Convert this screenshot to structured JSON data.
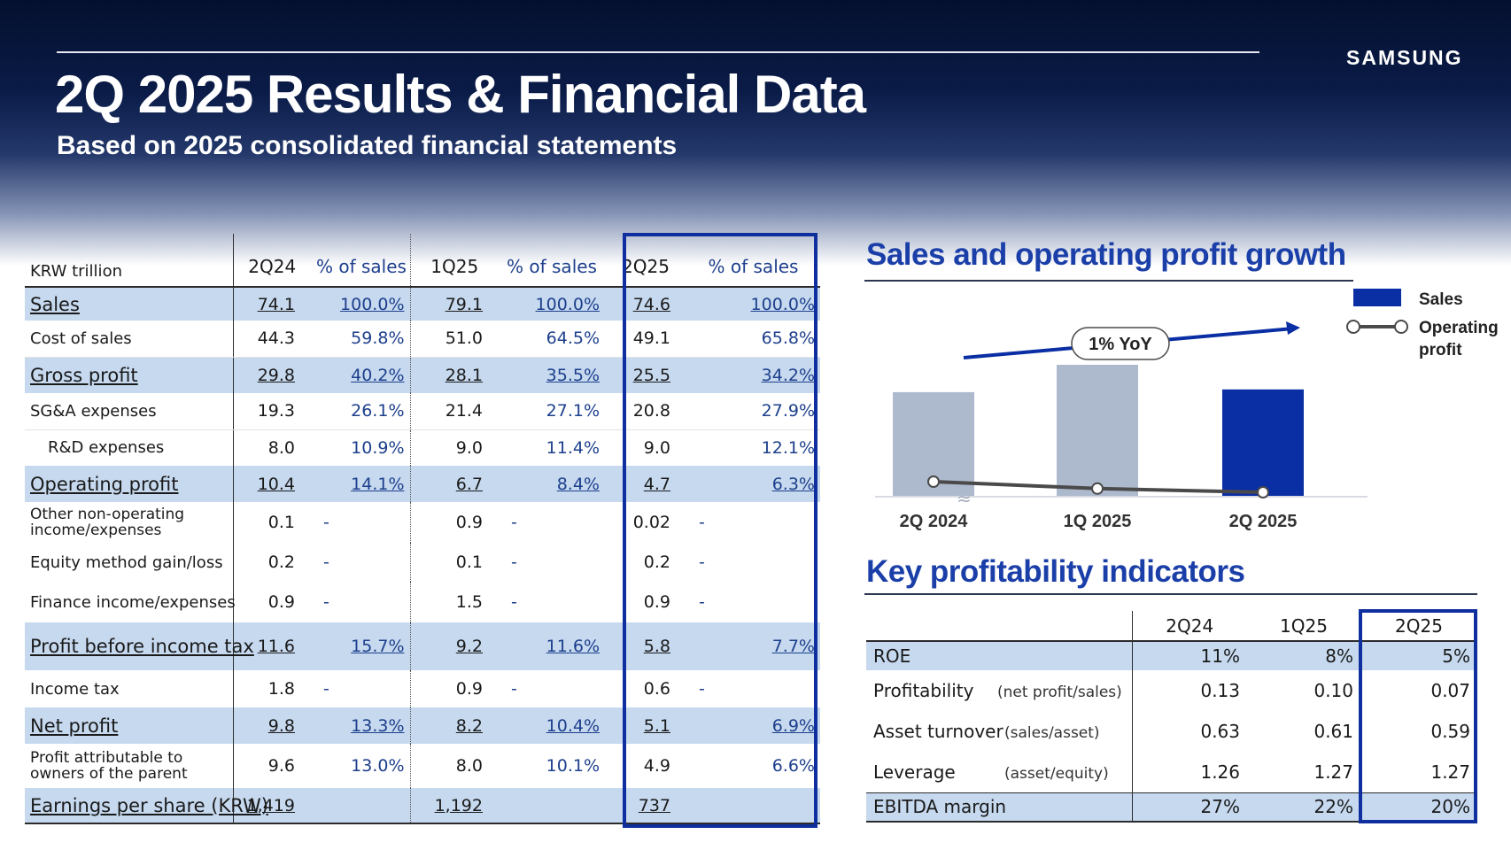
{
  "header": {
    "brand": "SAMSUNG",
    "title": "2Q 2025 Results & Financial Data",
    "subtitle": "Based on 2025 consolidated financial statements"
  },
  "table": {
    "unit": "KRW trillion",
    "columns": [
      "2Q24",
      "% of sales",
      "1Q25",
      "% of sales",
      "2Q25",
      "% of sales"
    ],
    "rows": [
      {
        "label": "Sales",
        "v1": "74.1",
        "p1": "100.0%",
        "v2": "79.1",
        "p2": "100.0%",
        "v3": "74.6",
        "p3": "100.0%"
      },
      {
        "label": "Cost of sales",
        "v1": "44.3",
        "p1": "59.8%",
        "v2": "51.0",
        "p2": "64.5%",
        "v3": "49.1",
        "p3": "65.8%"
      },
      {
        "label": "Gross profit",
        "v1": "29.8",
        "p1": "40.2%",
        "v2": "28.1",
        "p2": "35.5%",
        "v3": "25.5",
        "p3": "34.2%"
      },
      {
        "label": "SG&A expenses",
        "v1": "19.3",
        "p1": "26.1%",
        "v2": "21.4",
        "p2": "27.1%",
        "v3": "20.8",
        "p3": "27.9%"
      },
      {
        "label": "R&D expenses",
        "v1": "8.0",
        "p1": "10.9%",
        "v2": "9.0",
        "p2": "11.4%",
        "v3": "9.0",
        "p3": "12.1%"
      },
      {
        "label": "Operating profit",
        "v1": "10.4",
        "p1": "14.1%",
        "v2": "6.7",
        "p2": "8.4%",
        "v3": "4.7",
        "p3": "6.3%"
      },
      {
        "label": "Other non-operating income/expenses",
        "v1": "0.1",
        "p1": "-",
        "v2": "0.9",
        "p2": "-",
        "v3": "0.02",
        "p3": "-"
      },
      {
        "label": "Equity method gain/loss",
        "v1": "0.2",
        "p1": "-",
        "v2": "0.1",
        "p2": "-",
        "v3": "0.2",
        "p3": "-"
      },
      {
        "label": "Finance income/expenses",
        "v1": "0.9",
        "p1": "-",
        "v2": "1.5",
        "p2": "-",
        "v3": "0.9",
        "p3": "-"
      },
      {
        "label": "Profit before income tax",
        "v1": "11.6",
        "p1": "15.7%",
        "v2": "9.2",
        "p2": "11.6%",
        "v3": "5.8",
        "p3": "7.7%"
      },
      {
        "label": "Income tax",
        "v1": "1.8",
        "p1": "-",
        "v2": "0.9",
        "p2": "-",
        "v3": "0.6",
        "p3": "-"
      },
      {
        "label": "Net profit",
        "v1": "9.8",
        "p1": "13.3%",
        "v2": "8.2",
        "p2": "10.4%",
        "v3": "5.1",
        "p3": "6.9%"
      },
      {
        "label": "Profit attributable to owners of the parent",
        "v1": "9.6",
        "p1": "13.0%",
        "v2": "8.0",
        "p2": "10.1%",
        "v3": "4.9",
        "p3": "6.6%"
      },
      {
        "label": "Earnings per share (KRW)",
        "v1": "1,419",
        "p1": "",
        "v2": "1,192",
        "p2": "",
        "v3": "737",
        "p3": ""
      }
    ]
  },
  "growth": {
    "title": "Sales and operating profit growth",
    "yoy": "1% YoY",
    "legend": {
      "sales": "Sales",
      "op": "Operating profit"
    },
    "colors": {
      "past_bar": "#adb9cd",
      "current_bar": "#0a2ea3",
      "line": "#4a4a4a",
      "arrow": "#0a2ea3"
    }
  },
  "chart_data": {
    "type": "bar",
    "categories": [
      "2Q 2024",
      "1Q 2025",
      "2Q 2025"
    ],
    "series": [
      {
        "name": "Sales",
        "values": [
          74.1,
          79.1,
          74.6
        ]
      },
      {
        "name": "Operating profit",
        "values": [
          10.4,
          6.7,
          4.7
        ]
      }
    ],
    "annotations": [
      "1% YoY"
    ],
    "legend_position": "top-right",
    "axis_break": true
  },
  "kpi": {
    "title": "Key profitability indicators",
    "columns": [
      "2Q24",
      "1Q25",
      "2Q25"
    ],
    "rows": [
      {
        "metric": "ROE",
        "formula": "",
        "v1": "11%",
        "v2": "8%",
        "v3": "5%"
      },
      {
        "metric": "Profitability",
        "formula": "(net profit/sales)",
        "v1": "0.13",
        "v2": "0.10",
        "v3": "0.07"
      },
      {
        "metric": "Asset turnover",
        "formula": "(sales/asset)",
        "v1": "0.63",
        "v2": "0.61",
        "v3": "0.59"
      },
      {
        "metric": "Leverage",
        "formula": "(asset/equity)",
        "v1": "1.26",
        "v2": "1.27",
        "v3": "1.27"
      },
      {
        "metric": "EBITDA margin",
        "formula": "",
        "v1": "27%",
        "v2": "22%",
        "v3": "20%"
      }
    ]
  }
}
